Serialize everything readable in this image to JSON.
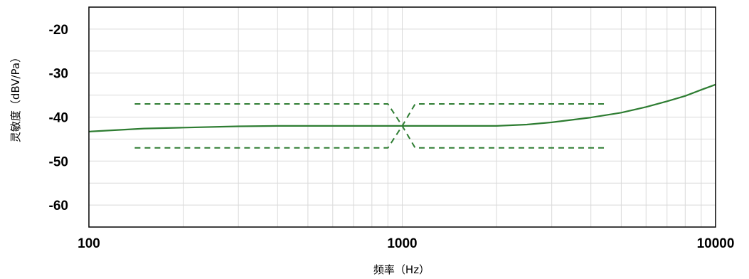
{
  "chart_data": {
    "type": "line",
    "title": "",
    "xlabel": "频率（Hz）",
    "ylabel": "灵敏度（dBV/Pa）",
    "xscale": "log",
    "xlim": [
      100,
      10000
    ],
    "ylim": [
      -65,
      -15
    ],
    "x_ticks": [
      100,
      1000,
      10000
    ],
    "x_tick_labels": [
      "100",
      "1000",
      "10000"
    ],
    "y_ticks": [
      -20,
      -30,
      -40,
      -50,
      -60
    ],
    "y_tick_labels": [
      "-20",
      "-30",
      "-40",
      "-50",
      "-60"
    ],
    "grid": true,
    "colors": {
      "series": "#2e7d32",
      "grid": "#d9d9d9",
      "frame": "#000000"
    },
    "series": [
      {
        "style": "solid",
        "x": [
          100,
          150,
          200,
          300,
          400,
          500,
          700,
          1000,
          1500,
          2000,
          2500,
          3000,
          4000,
          5000,
          6000,
          7000,
          8000,
          9000,
          10000
        ],
        "y": [
          -43.3,
          -42.6,
          -42.4,
          -42.1,
          -42.0,
          -42.0,
          -42.0,
          -42.0,
          -42.0,
          -42.0,
          -41.7,
          -41.2,
          -40.1,
          -39.0,
          -37.7,
          -36.4,
          -35.2,
          -33.8,
          -32.6
        ]
      },
      {
        "style": "dashed",
        "x": [
          140,
          900,
          1000,
          1100,
          4450
        ],
        "y": [
          -37.0,
          -37.0,
          -42.0,
          -37.0,
          -37.0
        ]
      },
      {
        "style": "dashed",
        "x": [
          140,
          900,
          1000,
          1100,
          4450
        ],
        "y": [
          -47.0,
          -47.0,
          -42.0,
          -47.0,
          -47.0
        ]
      }
    ]
  }
}
